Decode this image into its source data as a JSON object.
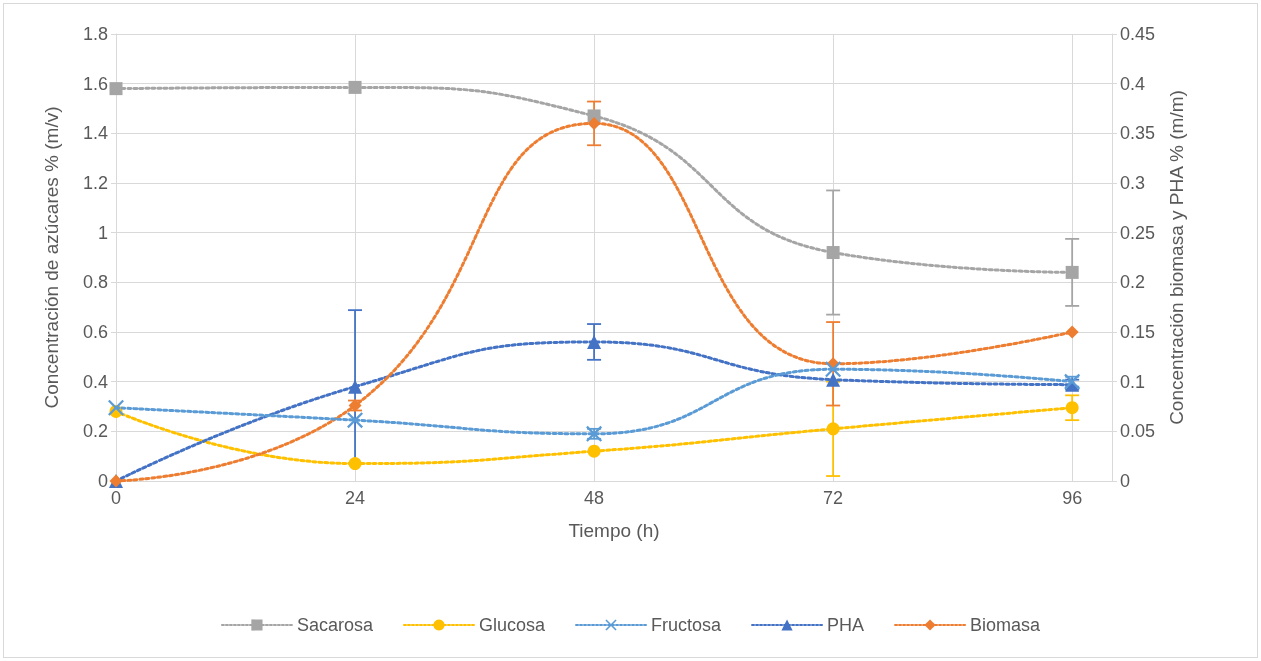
{
  "chart_data": {
    "type": "line",
    "xlabel": "Tiempo (h)",
    "ylabel": "Concentración de azúcares % (m/v)",
    "y2label": "Concentración biomasa y PHA % (m/m)",
    "x": [
      0,
      24,
      48,
      72,
      96
    ],
    "xlim": [
      0,
      100
    ],
    "xticks": [
      0,
      24,
      48,
      72,
      96
    ],
    "ylim": [
      0,
      1.8
    ],
    "yticks": [
      0,
      0.2,
      0.4,
      0.6,
      0.8,
      1,
      1.2,
      1.4,
      1.6,
      1.8
    ],
    "y2lim": [
      0,
      0.45
    ],
    "y2ticks": [
      0,
      0.05,
      0.1,
      0.15,
      0.2,
      0.25,
      0.3,
      0.35,
      0.4,
      0.45
    ],
    "grid": true,
    "legend": "bottom",
    "line_style": "dotted",
    "series": [
      {
        "name": "Sacarosa",
        "color": "#a5a5a5",
        "marker": "square",
        "values": [
          1.58,
          1.585,
          1.47,
          0.92,
          0.84
        ],
        "errors": [
          null,
          null,
          null,
          0.25,
          0.135
        ]
      },
      {
        "name": "Glucosa",
        "color": "#ffc000",
        "marker": "circle",
        "values": [
          0.28,
          0.07,
          0.12,
          0.21,
          0.295
        ],
        "errors": [
          null,
          null,
          null,
          0.19,
          0.05
        ]
      },
      {
        "name": "Fructosa",
        "color": "#5b9bd5",
        "marker": "cross",
        "values": [
          0.295,
          0.245,
          0.19,
          0.45,
          0.4
        ],
        "errors": [
          null,
          null,
          0.02,
          null,
          0.02
        ]
      },
      {
        "name": "PHA",
        "color": "#4472c4",
        "marker": "triangle",
        "axis": "y2",
        "values": [
          0,
          0.095,
          0.14,
          0.102,
          0.097
        ],
        "errors": [
          null,
          0.077,
          0.018,
          null,
          0.005
        ]
      },
      {
        "name": "Biomasa",
        "color": "#ed7d31",
        "marker": "diamond",
        "axis": "y2",
        "values": [
          0,
          0.076,
          0.36,
          0.118,
          0.15
        ],
        "errors": [
          null,
          0.005,
          0.022,
          0.042,
          null
        ]
      }
    ]
  }
}
